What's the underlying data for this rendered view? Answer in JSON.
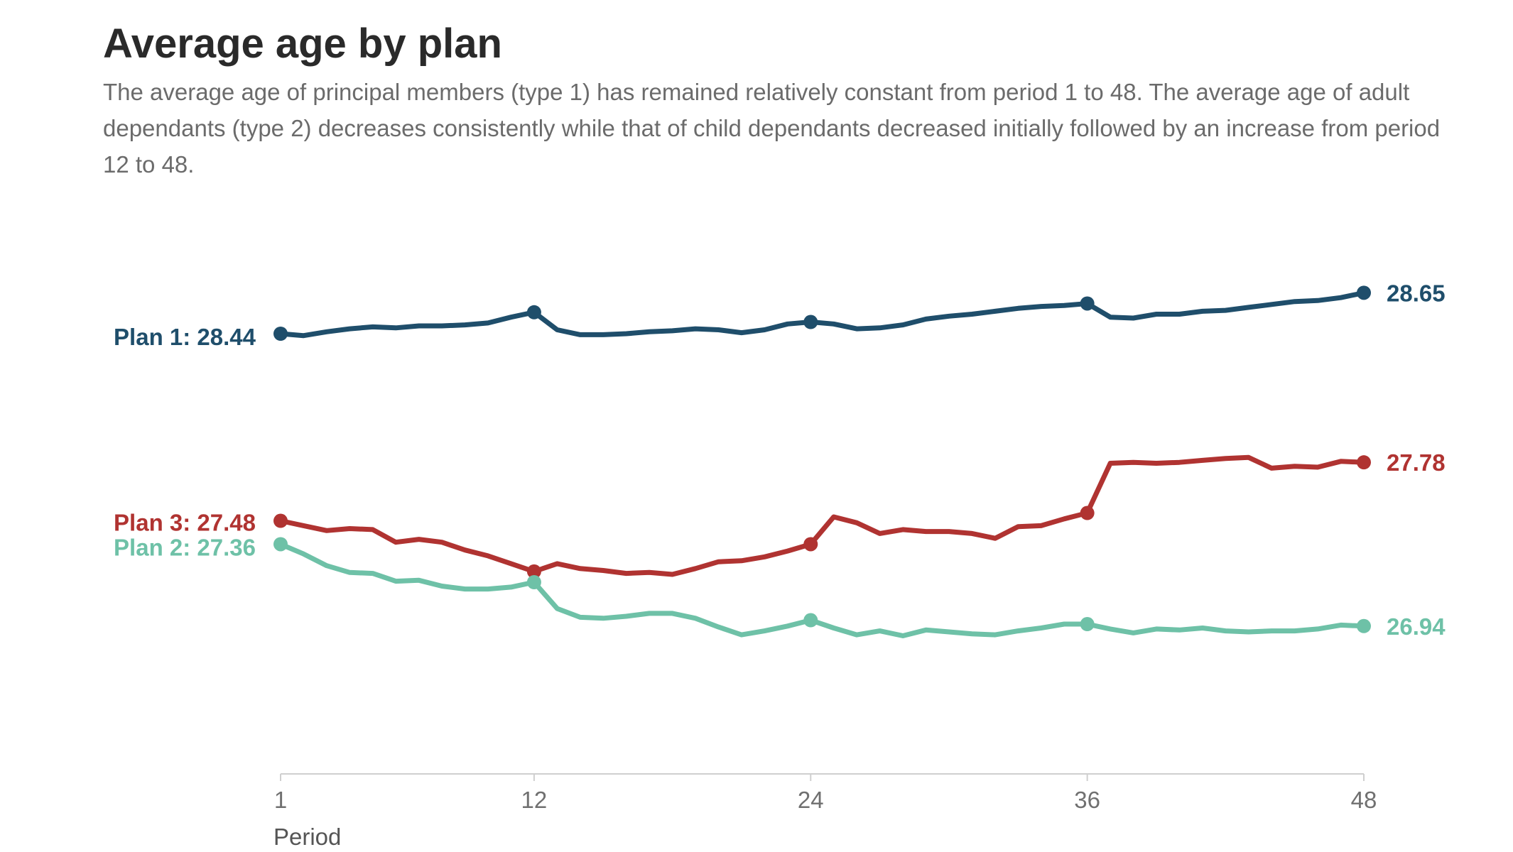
{
  "title": "Average age by plan",
  "subtitle": "The average age of principal members (type 1) has remained relatively constant from period 1 to 48. The average age of adult dependants (type 2) decreases consistently while that of child dependants decreased initially followed by an increase from period 12 to 48.",
  "chart_data": {
    "type": "line",
    "title": "Average age by plan",
    "xlabel": "Period",
    "ylabel": "",
    "xlim": [
      1,
      48
    ],
    "ylim": [
      26.4,
      28.95
    ],
    "x_ticks": [
      1,
      12,
      24,
      36,
      48
    ],
    "grid": false,
    "legend": "direct labels at line starts (left) and ends (right)",
    "highlight_periods": [
      1,
      12,
      24,
      36,
      48
    ],
    "x": [
      1,
      2,
      3,
      4,
      5,
      6,
      7,
      8,
      9,
      10,
      11,
      12,
      13,
      14,
      15,
      16,
      17,
      18,
      19,
      20,
      21,
      22,
      23,
      24,
      25,
      26,
      27,
      28,
      29,
      30,
      31,
      32,
      33,
      34,
      35,
      36,
      37,
      38,
      39,
      40,
      41,
      42,
      43,
      44,
      45,
      46,
      47,
      48
    ],
    "series": [
      {
        "name": "Plan 1",
        "color": "#1f4e6b",
        "start_label": "Plan 1: 28.44",
        "end_label": "28.65",
        "values": [
          28.44,
          28.43,
          28.45,
          28.465,
          28.475,
          28.47,
          28.48,
          28.48,
          28.485,
          28.495,
          28.525,
          28.55,
          28.46,
          28.435,
          28.435,
          28.44,
          28.45,
          28.455,
          28.465,
          28.46,
          28.445,
          28.46,
          28.49,
          28.5,
          28.49,
          28.465,
          28.47,
          28.485,
          28.515,
          28.53,
          28.54,
          28.555,
          28.57,
          28.58,
          28.585,
          28.595,
          28.525,
          28.52,
          28.54,
          28.54,
          28.555,
          28.56,
          28.575,
          28.59,
          28.605,
          28.61,
          28.625,
          28.65
        ]
      },
      {
        "name": "Plan 3",
        "color": "#b03331",
        "start_label": "Plan 3: 27.48",
        "end_label": "27.78",
        "values": [
          27.48,
          27.455,
          27.43,
          27.44,
          27.435,
          27.37,
          27.385,
          27.37,
          27.33,
          27.3,
          27.26,
          27.22,
          27.26,
          27.235,
          27.225,
          27.21,
          27.215,
          27.205,
          27.235,
          27.27,
          27.275,
          27.295,
          27.325,
          27.36,
          27.5,
          27.47,
          27.415,
          27.435,
          27.425,
          27.425,
          27.415,
          27.39,
          27.45,
          27.455,
          27.49,
          27.52,
          27.775,
          27.78,
          27.775,
          27.78,
          27.79,
          27.8,
          27.805,
          27.75,
          27.76,
          27.755,
          27.785,
          27.78
        ]
      },
      {
        "name": "Plan 2",
        "color": "#6ec1a7",
        "start_label": "Plan 2: 27.36",
        "end_label": "26.94",
        "values": [
          27.36,
          27.31,
          27.25,
          27.215,
          27.21,
          27.17,
          27.175,
          27.145,
          27.13,
          27.13,
          27.14,
          27.165,
          27.03,
          26.985,
          26.98,
          26.99,
          27.005,
          27.005,
          26.98,
          26.935,
          26.895,
          26.915,
          26.94,
          26.97,
          26.93,
          26.895,
          26.915,
          26.89,
          26.92,
          26.91,
          26.9,
          26.895,
          26.915,
          26.93,
          26.95,
          26.95,
          26.925,
          26.905,
          26.925,
          26.92,
          26.93,
          26.915,
          26.91,
          26.915,
          26.915,
          26.925,
          26.945,
          26.94
        ]
      }
    ]
  }
}
